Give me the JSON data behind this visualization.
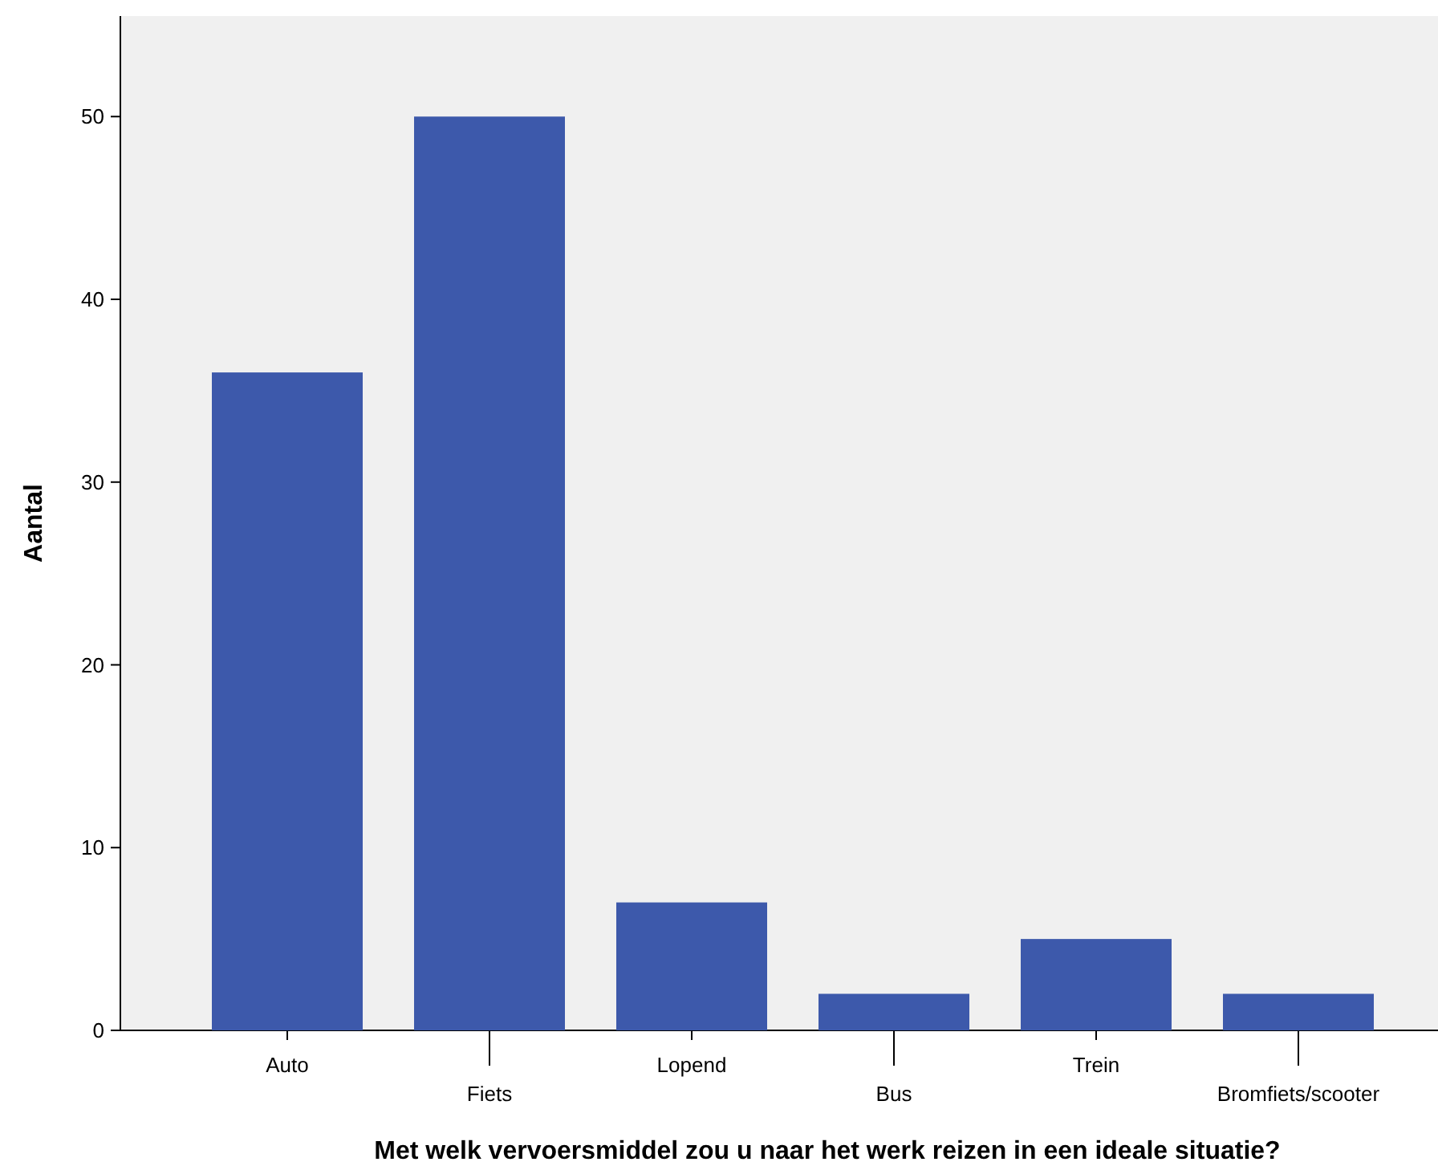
{
  "chart_data": {
    "type": "bar",
    "xlabel": "Met welk vervoersmiddel zou u naar het werk reizen in een ideale situatie?",
    "ylabel": "Aantal",
    "categories": [
      "Auto",
      "Fiets",
      "Lopend",
      "Bus",
      "Trein",
      "Bromfiets/scooter"
    ],
    "values": [
      36,
      50,
      7,
      2,
      5,
      2
    ],
    "color": "#3d59ab",
    "ylim": [
      0,
      55.5
    ],
    "yticks": [
      0,
      10,
      20,
      30,
      40,
      50
    ],
    "grid": false
  }
}
